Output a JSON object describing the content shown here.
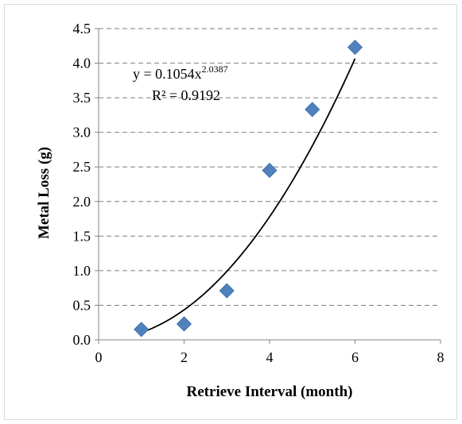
{
  "chart_data": {
    "type": "scatter",
    "title": "",
    "xlabel": "Retrieve Interval (month)",
    "ylabel": "Metal Loss (g)",
    "xlim": [
      0,
      8
    ],
    "ylim": [
      0,
      4.5
    ],
    "x_ticks": [
      0,
      2,
      4,
      6,
      8
    ],
    "y_ticks": [
      0.0,
      0.5,
      1.0,
      1.5,
      2.0,
      2.5,
      3.0,
      3.5,
      4.0,
      4.5
    ],
    "x_tick_labels": [
      "0",
      "2",
      "4",
      "6",
      "8"
    ],
    "y_tick_labels": [
      "0.0",
      "0.5",
      "1.0",
      "1.5",
      "2.0",
      "2.5",
      "3.0",
      "3.5",
      "4.0",
      "4.5"
    ],
    "grid": {
      "horizontal": true,
      "style": "dashed"
    },
    "series": [
      {
        "x": [
          1,
          2,
          3,
          4,
          5,
          6
        ],
        "y": [
          0.15,
          0.23,
          0.71,
          2.45,
          3.33,
          4.23
        ],
        "marker": "diamond",
        "color": "#4f81bd"
      }
    ],
    "trendline": {
      "type": "power",
      "coefficient": 0.1054,
      "exponent": 2.0387,
      "x_range": [
        1,
        6
      ],
      "color": "#000000",
      "equation_base": "y = 0.1054x",
      "equation_exponent": "2.0387",
      "r_squared_label": "R² = 0.9192"
    }
  }
}
